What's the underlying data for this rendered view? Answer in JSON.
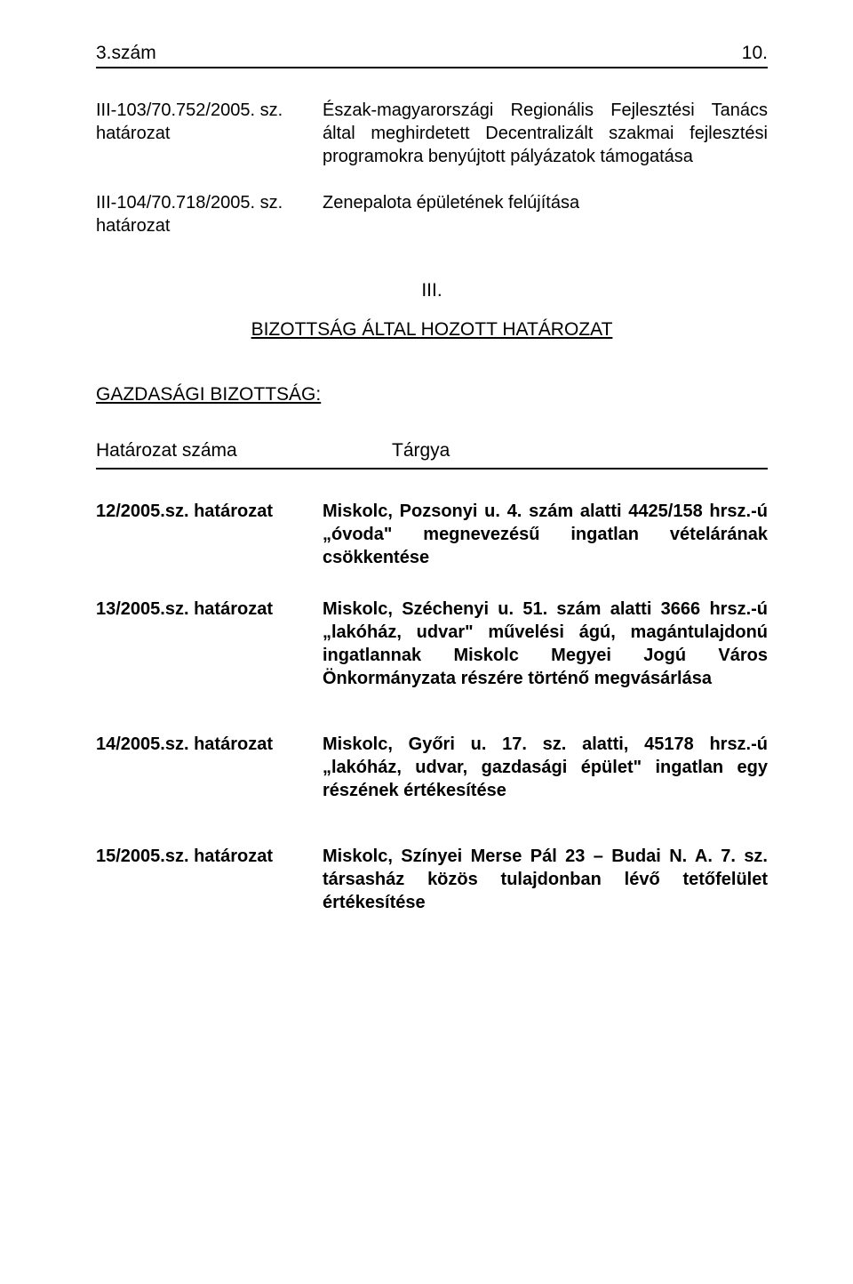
{
  "header": {
    "left": "3.szám",
    "right": "10."
  },
  "regulations": [
    {
      "id": "III-103/70.752/2005. sz. határozat",
      "desc": "Észak-magyarországi Regionális Fejlesztési Tanács által meghirdetett Decentralizált szakmai fejlesztési programokra benyújtott pályázatok támogatása"
    },
    {
      "id": "III-104/70.718/2005. sz. határozat",
      "desc": "Zenepalota épületének felújítása"
    }
  ],
  "section": {
    "num": "III.",
    "title": "BIZOTTSÁG ÁLTAL HOZOTT HATÁROZAT"
  },
  "committee": "GAZDASÁGI BIZOTTSÁG:",
  "table_head": {
    "left": "Határozat száma",
    "right": "Tárgya"
  },
  "resolutions": [
    {
      "id": "12/2005.sz. határozat",
      "desc": "Miskolc, Pozsonyi u. 4. szám alatti 4425/158 hrsz.-ú „óvoda\" megnevezésű ingatlan vételárának csökkentése"
    },
    {
      "id": "13/2005.sz. határozat",
      "desc": "Miskolc, Széchenyi u. 51. szám alatti 3666 hrsz.-ú „lakóház, udvar\" művelési ágú, magántulajdonú ingatlannak Miskolc Megyei Jogú Város Önkormányzata részére történő megvásárlása"
    },
    {
      "id": "14/2005.sz. határozat",
      "desc": "Miskolc, Győri u. 17. sz. alatti, 45178 hrsz.-ú „lakóház, udvar, gazdasági épület\" ingatlan egy részének értékesítése"
    },
    {
      "id": "15/2005.sz. határozat",
      "desc": "Miskolc, Színyei Merse Pál 23 – Budai N. A. 7. sz. társasház közös tulajdonban lévő tetőfelület értékesítése"
    }
  ]
}
